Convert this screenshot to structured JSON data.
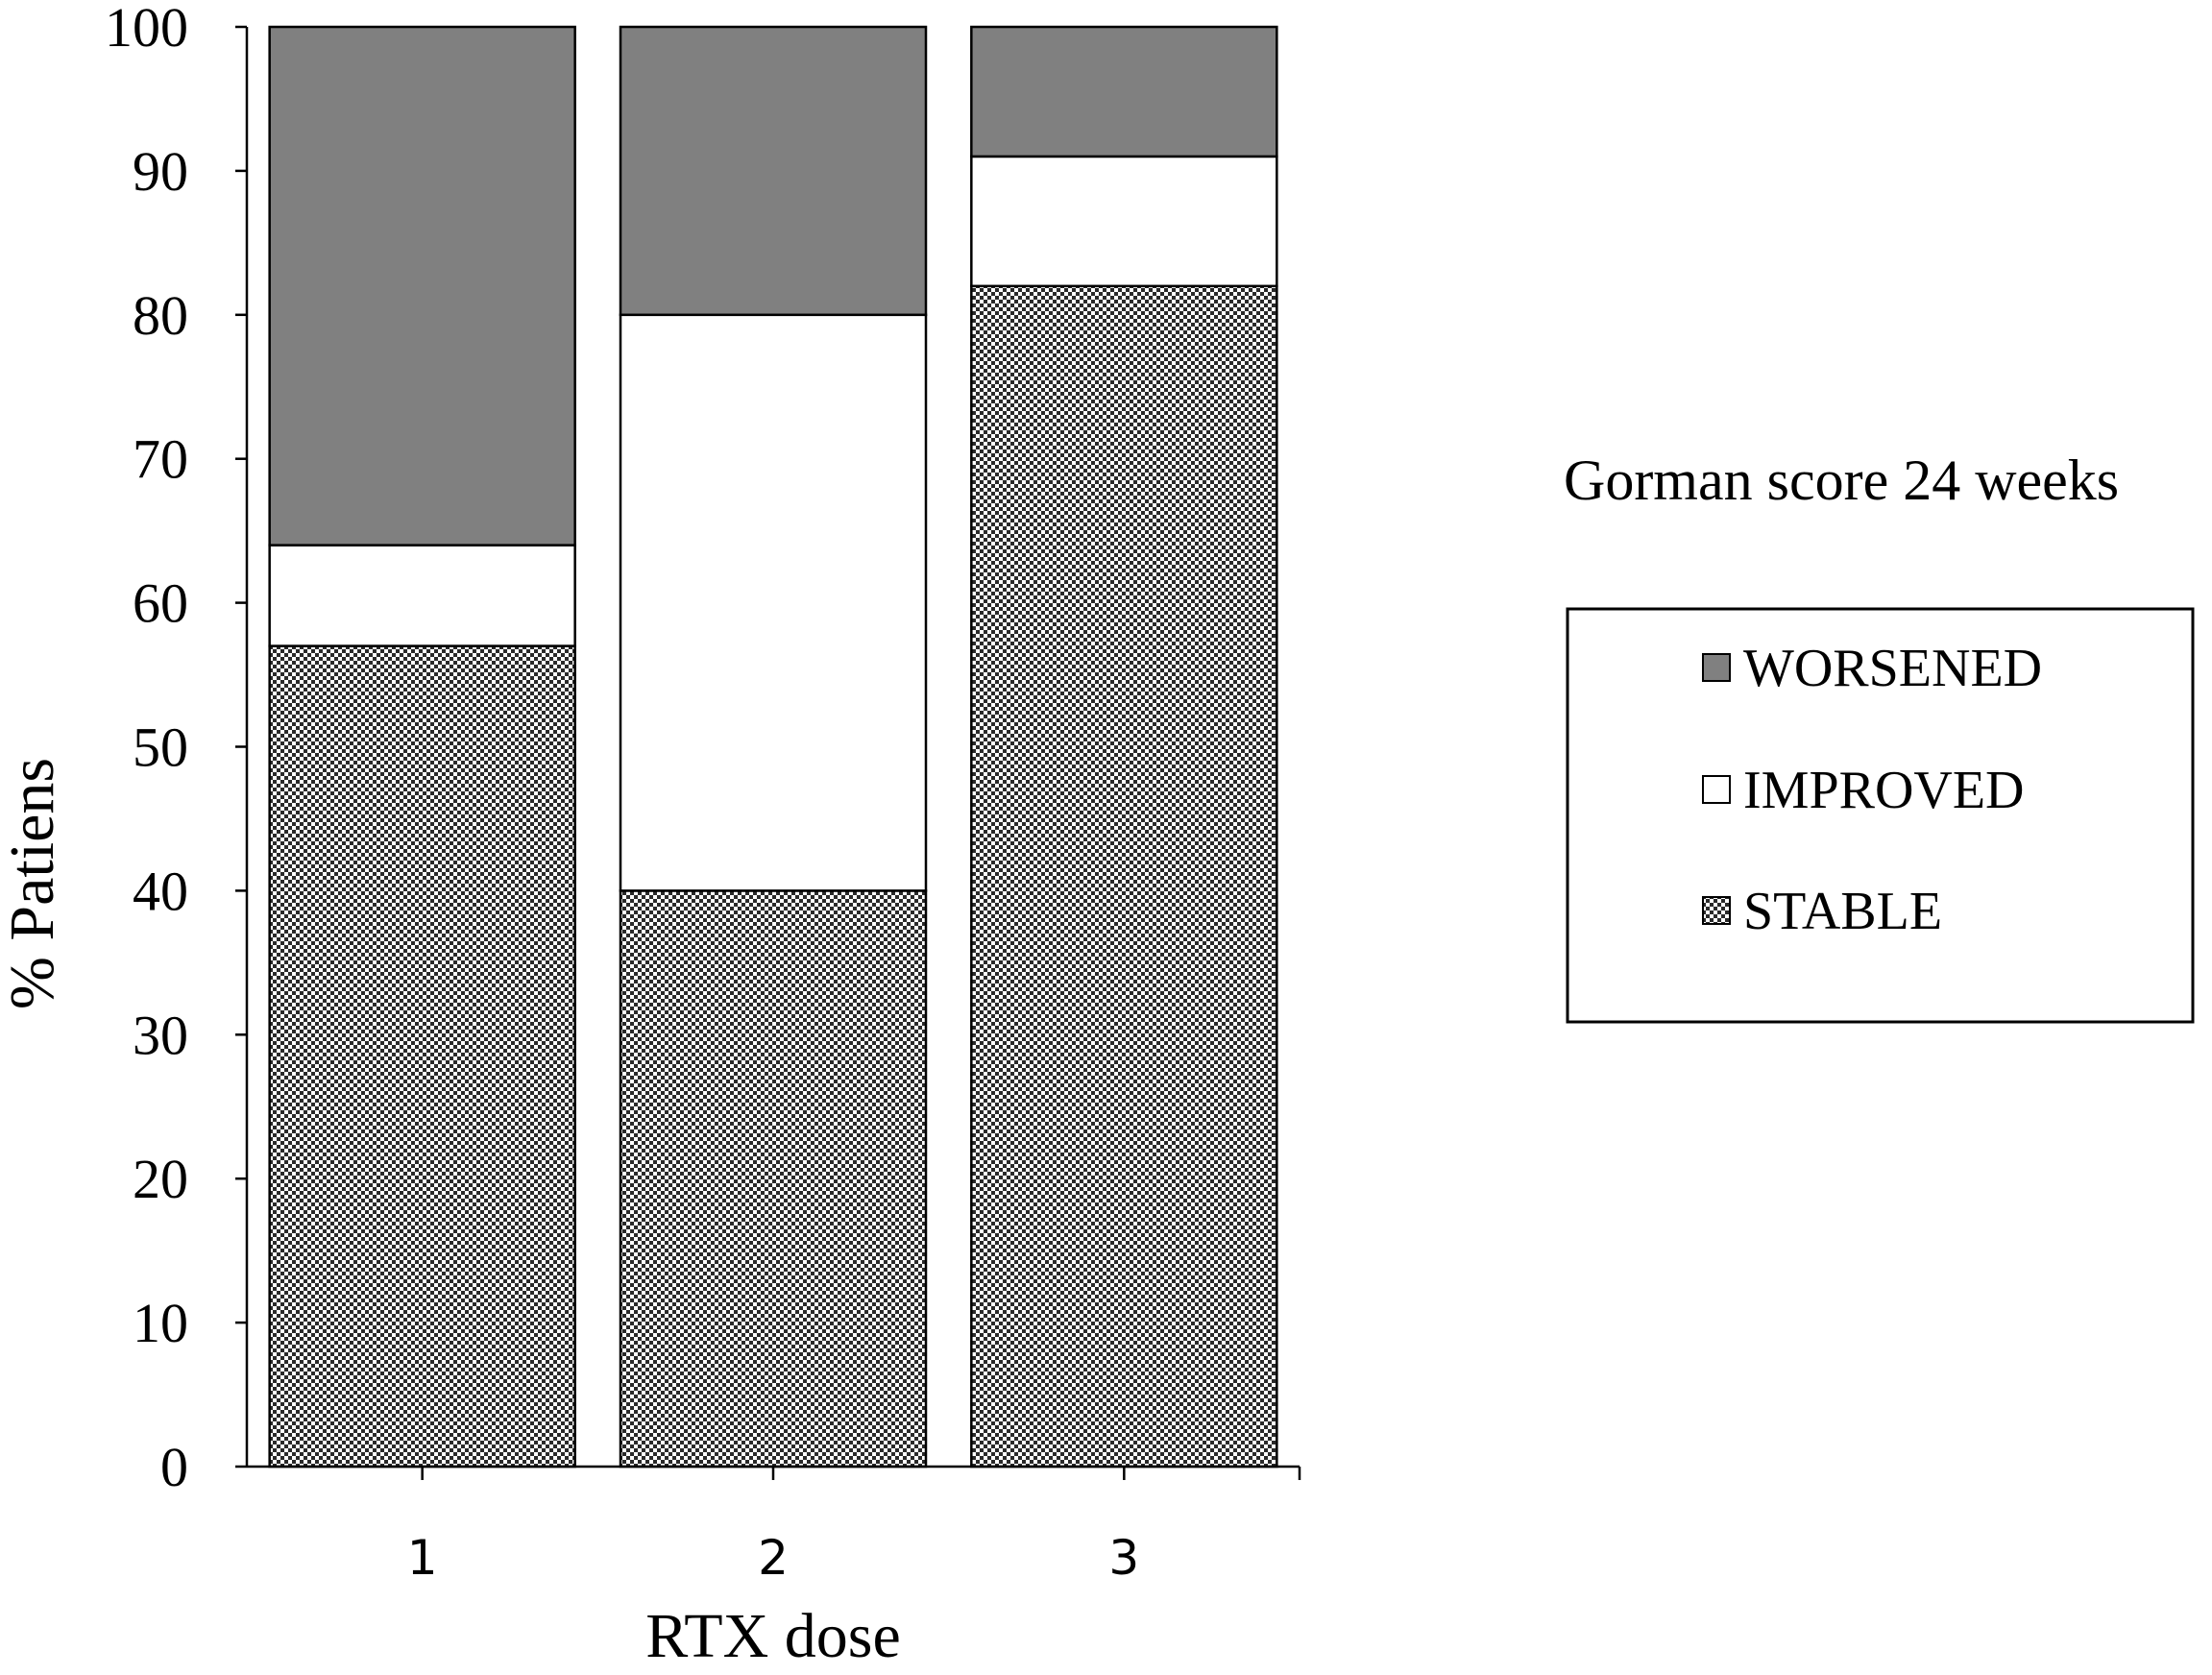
{
  "chart_data": {
    "type": "bar",
    "stacked": true,
    "categories": [
      "1",
      "2",
      "3"
    ],
    "series": [
      {
        "name": "STABLE",
        "values": [
          57,
          40,
          82
        ],
        "color": "#ffffff",
        "pattern": "checker"
      },
      {
        "name": "IMPROVED",
        "values": [
          7,
          40,
          9
        ],
        "color": "#ffffff",
        "pattern": "none"
      },
      {
        "name": "WORSENED",
        "values": [
          36,
          20,
          9
        ],
        "color": "#808080",
        "pattern": "none"
      }
    ],
    "xlabel": "RTX dose",
    "ylabel": "% Patiens",
    "ylim": [
      0,
      100
    ],
    "yticks": [
      "0",
      "10",
      "20",
      "30",
      "40",
      "50",
      "60",
      "70",
      "80",
      "90",
      "100"
    ],
    "grid": false,
    "legend": {
      "title": "Gorman score 24 weeks",
      "placement": "right",
      "entries": [
        "WORSENED",
        "IMPROVED",
        "STABLE"
      ]
    }
  }
}
